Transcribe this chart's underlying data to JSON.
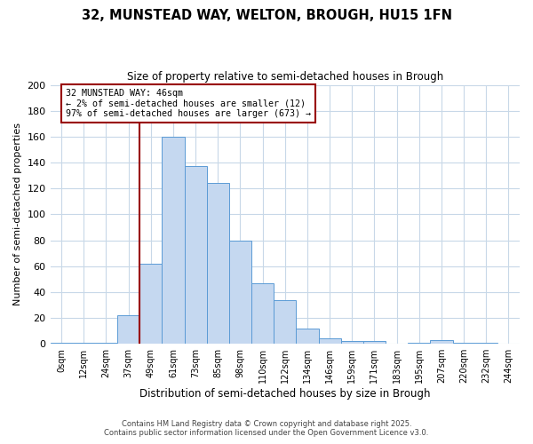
{
  "title": "32, MUNSTEAD WAY, WELTON, BROUGH, HU15 1FN",
  "subtitle": "Size of property relative to semi-detached houses in Brough",
  "xlabel": "Distribution of semi-detached houses by size in Brough",
  "ylabel": "Number of semi-detached properties",
  "bin_labels": [
    "0sqm",
    "12sqm",
    "24sqm",
    "37sqm",
    "49sqm",
    "61sqm",
    "73sqm",
    "85sqm",
    "98sqm",
    "110sqm",
    "122sqm",
    "134sqm",
    "146sqm",
    "159sqm",
    "171sqm",
    "183sqm",
    "195sqm",
    "207sqm",
    "220sqm",
    "232sqm",
    "244sqm"
  ],
  "bar_values": [
    1,
    1,
    1,
    22,
    62,
    160,
    137,
    124,
    80,
    47,
    34,
    12,
    4,
    2,
    2,
    0,
    1,
    3,
    1,
    1,
    0
  ],
  "bar_color": "#c5d8f0",
  "bar_edge_color": "#5b9bd5",
  "vline_x_idx": 4,
  "vline_color": "#990000",
  "annotation_title": "32 MUNSTEAD WAY: 46sqm",
  "annotation_line1": "← 2% of semi-detached houses are smaller (12)",
  "annotation_line2": "97% of semi-detached houses are larger (673) →",
  "annotation_box_color": "#ffffff",
  "annotation_box_edge": "#990000",
  "ylim": [
    0,
    200
  ],
  "yticks": [
    0,
    20,
    40,
    60,
    80,
    100,
    120,
    140,
    160,
    180,
    200
  ],
  "footer1": "Contains HM Land Registry data © Crown copyright and database right 2025.",
  "footer2": "Contains public sector information licensed under the Open Government Licence v3.0.",
  "background_color": "#ffffff",
  "grid_color": "#c8d8e8"
}
